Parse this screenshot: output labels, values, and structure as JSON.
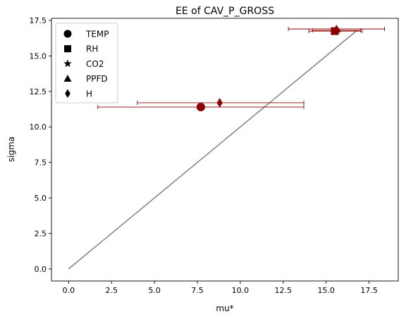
{
  "chart_data": {
    "type": "scatter",
    "title": "EE of CAV_P_GROSS",
    "xlabel": "mu*",
    "ylabel": "sigma",
    "xlim": [
      -1.0,
      19.2
    ],
    "ylim": [
      -0.85,
      17.65
    ],
    "xticks": [
      0.0,
      2.5,
      5.0,
      7.5,
      10.0,
      12.5,
      15.0,
      17.5
    ],
    "xtick_labels": [
      "0.0",
      "2.5",
      "5.0",
      "7.5",
      "10.0",
      "12.5",
      "15.0",
      "17.5"
    ],
    "yticks": [
      0.0,
      2.5,
      5.0,
      7.5,
      10.0,
      12.5,
      15.0,
      17.5
    ],
    "ytick_labels": [
      "0.0",
      "2.5",
      "5.0",
      "7.5",
      "10.0",
      "12.5",
      "15.0",
      "17.5"
    ],
    "grid": false,
    "legend_position": "top-left",
    "marker_color": "#8b0000",
    "errorbar_color": "#8b0000",
    "reference_line": {
      "x": [
        0,
        16.8
      ],
      "y": [
        0,
        16.8
      ],
      "color": "#808080"
    },
    "series": [
      {
        "name": "TEMP",
        "marker": "circle",
        "x": 7.7,
        "y": 11.4,
        "xerr_low": 1.7,
        "xerr_high": 13.7
      },
      {
        "name": "RH",
        "marker": "square",
        "x": 15.5,
        "y": 16.75,
        "xerr_low": 14.0,
        "xerr_high": 17.1
      },
      {
        "name": "CO2",
        "marker": "star",
        "x": 15.6,
        "y": 16.8,
        "xerr_low": 14.2,
        "xerr_high": 17.0
      },
      {
        "name": "PPFD",
        "marker": "triangle",
        "x": 15.6,
        "y": 16.9,
        "xerr_low": 12.8,
        "xerr_high": 18.4
      },
      {
        "name": "H",
        "marker": "diamond",
        "x": 8.8,
        "y": 11.7,
        "xerr_low": 4.0,
        "xerr_high": 13.7
      }
    ]
  }
}
